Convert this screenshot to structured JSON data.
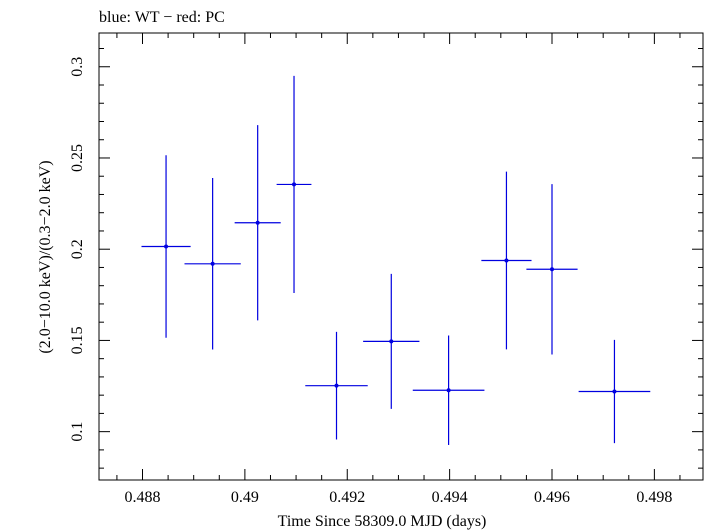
{
  "chart_data": {
    "type": "scatter",
    "title": "blue: WT − red: PC",
    "xlabel": "Time Since 58309.0 MJD (days)",
    "ylabel": "(2.0−10.0 keV)/(0.3−2.0 keV)",
    "xlim": [
      0.48715,
      0.49895
    ],
    "ylim": [
      0.0735,
      0.3185
    ],
    "x_ticks": [
      0.488,
      0.49,
      0.492,
      0.494,
      0.496,
      0.498
    ],
    "x_tick_labels": [
      "0.488",
      "0.49",
      "0.492",
      "0.494",
      "0.496",
      "0.498"
    ],
    "y_ticks": [
      0.1,
      0.15,
      0.2,
      0.25,
      0.3
    ],
    "y_tick_labels": [
      "0.1",
      "0.15",
      "0.2",
      "0.25",
      "0.3"
    ],
    "grid": false,
    "series": [
      {
        "color": "#0000e0",
        "points": [
          {
            "x": 0.48846,
            "xerr": 0.00048,
            "y": 0.2015,
            "yerr": 0.05
          },
          {
            "x": 0.48937,
            "xerr": 0.00055,
            "y": 0.192,
            "yerr": 0.047
          },
          {
            "x": 0.49025,
            "xerr": 0.00045,
            "y": 0.2145,
            "yerr": 0.0535
          },
          {
            "x": 0.49096,
            "xerr": 0.00034,
            "y": 0.2355,
            "yerr": 0.0595
          },
          {
            "x": 0.49179,
            "xerr": 0.00061,
            "y": 0.1252,
            "yerr": 0.0295
          },
          {
            "x": 0.49286,
            "xerr": 0.00055,
            "y": 0.1495,
            "yerr": 0.037
          },
          {
            "x": 0.49398,
            "xerr": 0.0007,
            "y": 0.1227,
            "yerr": 0.03
          },
          {
            "x": 0.49511,
            "xerr": 0.00049,
            "y": 0.1938,
            "yerr": 0.0487
          },
          {
            "x": 0.496,
            "xerr": 0.0005,
            "y": 0.189,
            "yerr": 0.0467
          },
          {
            "x": 0.49722,
            "xerr": 0.0007,
            "y": 0.122,
            "yerr": 0.0283
          }
        ]
      }
    ]
  }
}
